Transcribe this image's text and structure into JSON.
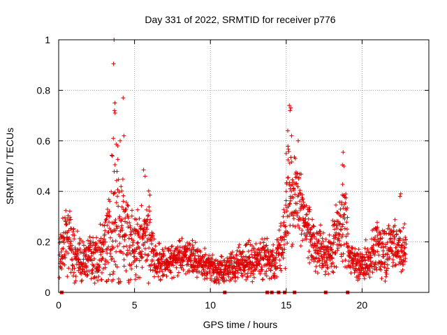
{
  "chart_data": {
    "type": "scatter",
    "title": "Day 331 of 2022, SRMTID for receiver p776",
    "xlabel": "GPS time / hours",
    "ylabel": "SRMTID / TECUs",
    "xlim": [
      0,
      24.4
    ],
    "ylim": [
      0,
      1
    ],
    "x_ticks": [
      0,
      5,
      10,
      15,
      20
    ],
    "y_ticks": [
      0,
      0.2,
      0.4,
      0.6,
      0.8,
      1
    ],
    "y_tick_labels": [
      "0",
      "0.2",
      "0.4",
      "0.6",
      "0.8",
      "1"
    ],
    "grid": true,
    "marker": "+",
    "series_color": "#dd0000",
    "series": [
      {
        "name": "SRMTID",
        "envelope_hours": [
          0.0,
          0.3,
          0.6,
          1.0,
          1.5,
          2.0,
          2.5,
          3.0,
          3.5,
          3.8,
          4.2,
          4.6,
          5.0,
          5.5,
          6.0,
          6.3,
          7.0,
          8.0,
          9.0,
          9.5,
          10.0,
          10.5,
          11.0,
          11.5,
          12.0,
          12.5,
          13.0,
          13.5,
          14.0,
          14.5,
          14.8,
          15.2,
          15.5,
          15.8,
          16.1,
          16.5,
          17.0,
          17.5,
          18.0,
          18.5,
          18.9,
          19.1,
          19.5,
          20.0,
          20.5,
          21.0,
          21.5,
          22.0,
          22.5,
          22.9
        ],
        "envelope_median": [
          0.12,
          0.2,
          0.21,
          0.16,
          0.13,
          0.14,
          0.13,
          0.16,
          0.24,
          0.28,
          0.24,
          0.2,
          0.19,
          0.21,
          0.23,
          0.13,
          0.12,
          0.14,
          0.13,
          0.12,
          0.1,
          0.08,
          0.09,
          0.1,
          0.11,
          0.13,
          0.12,
          0.14,
          0.12,
          0.14,
          0.2,
          0.4,
          0.34,
          0.38,
          0.3,
          0.24,
          0.17,
          0.15,
          0.18,
          0.24,
          0.34,
          0.14,
          0.12,
          0.11,
          0.13,
          0.18,
          0.17,
          0.19,
          0.18,
          0.16
        ],
        "envelope_spread": [
          0.05,
          0.08,
          0.08,
          0.06,
          0.05,
          0.05,
          0.06,
          0.09,
          0.14,
          0.18,
          0.13,
          0.1,
          0.1,
          0.09,
          0.1,
          0.05,
          0.04,
          0.04,
          0.04,
          0.04,
          0.03,
          0.03,
          0.03,
          0.04,
          0.04,
          0.05,
          0.04,
          0.05,
          0.04,
          0.05,
          0.08,
          0.13,
          0.11,
          0.1,
          0.07,
          0.06,
          0.05,
          0.05,
          0.06,
          0.08,
          0.12,
          0.05,
          0.04,
          0.04,
          0.05,
          0.07,
          0.06,
          0.07,
          0.06,
          0.05
        ],
        "peaks": [
          {
            "x": 3.65,
            "y": 1.0
          },
          {
            "x": 3.62,
            "y": 0.905
          },
          {
            "x": 3.7,
            "y": 0.75
          },
          {
            "x": 3.68,
            "y": 0.72
          },
          {
            "x": 3.72,
            "y": 0.71
          },
          {
            "x": 4.25,
            "y": 0.77
          },
          {
            "x": 3.6,
            "y": 0.61
          },
          {
            "x": 4.3,
            "y": 0.62
          },
          {
            "x": 3.9,
            "y": 0.58
          },
          {
            "x": 3.55,
            "y": 0.54
          },
          {
            "x": 4.05,
            "y": 0.6
          },
          {
            "x": 5.6,
            "y": 0.485
          },
          {
            "x": 5.7,
            "y": 0.46
          },
          {
            "x": 15.2,
            "y": 0.74
          },
          {
            "x": 15.3,
            "y": 0.73
          },
          {
            "x": 15.25,
            "y": 0.72
          },
          {
            "x": 15.1,
            "y": 0.64
          },
          {
            "x": 15.35,
            "y": 0.62
          },
          {
            "x": 15.0,
            "y": 0.55
          },
          {
            "x": 15.6,
            "y": 0.53
          },
          {
            "x": 18.75,
            "y": 0.555
          },
          {
            "x": 18.7,
            "y": 0.505
          },
          {
            "x": 18.8,
            "y": 0.5
          },
          {
            "x": 22.55,
            "y": 0.39
          },
          {
            "x": 22.5,
            "y": 0.38
          }
        ],
        "zero_points": [
          0.2,
          10.95,
          13.75,
          14.05,
          14.5,
          14.9,
          15.55,
          17.6,
          19.05
        ]
      }
    ]
  }
}
